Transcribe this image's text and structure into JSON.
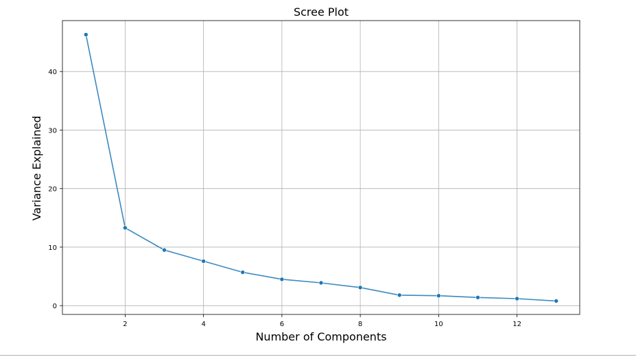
{
  "chart_data": {
    "type": "line",
    "title": "Scree Plot",
    "xlabel": "Number of Components",
    "ylabel": "Variance Explained",
    "x": [
      1,
      2,
      3,
      4,
      5,
      6,
      7,
      8,
      9,
      10,
      11,
      12,
      13
    ],
    "series": [
      {
        "values": [
          46.3,
          13.3,
          9.5,
          7.6,
          5.7,
          4.5,
          3.9,
          3.1,
          1.8,
          1.7,
          1.4,
          1.2,
          0.8
        ]
      }
    ],
    "xlim": [
      0.4,
      13.6
    ],
    "ylim": [
      -1.5,
      48.7
    ],
    "xticks": [
      2,
      4,
      6,
      8,
      10,
      12
    ],
    "yticks": [
      0,
      10,
      20,
      30,
      40
    ],
    "grid": true,
    "line_color": "#3a89bf",
    "marker_color": "#1f77b4"
  }
}
